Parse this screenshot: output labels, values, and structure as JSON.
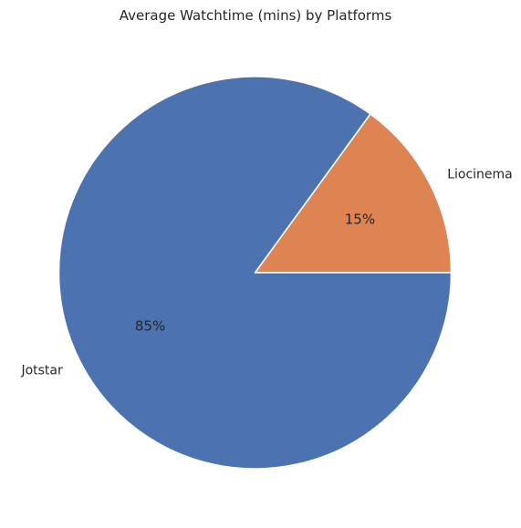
{
  "chart_data": {
    "type": "pie",
    "title": "Average Watchtime (mins) by Platforms",
    "slices": [
      {
        "label": "Liocinema",
        "value": 15,
        "pct_label": "15%",
        "color": "#dd8452"
      },
      {
        "label": "Jotstar",
        "value": 85,
        "pct_label": "85%",
        "color": "#4c72b0"
      }
    ],
    "start_angle_deg": 0,
    "direction": "counterclockwise",
    "wedge_edge_color": "#ffffff"
  }
}
